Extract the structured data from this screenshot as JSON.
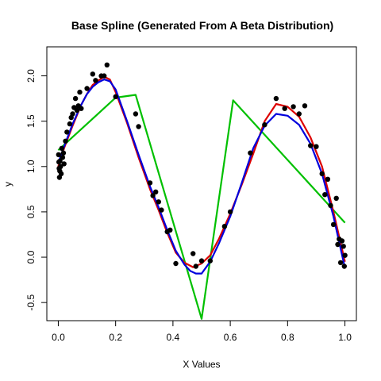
{
  "chart_data": {
    "type": "scatter",
    "title": "Base Spline (Generated From A Beta Distribution)",
    "xlabel": "X Values",
    "ylabel": "y",
    "xlim": [
      -0.04,
      1.04
    ],
    "ylim": [
      -0.7,
      2.32
    ],
    "x_ticks": [
      0.0,
      0.2,
      0.4,
      0.6,
      0.8,
      1.0
    ],
    "x_tick_labels": [
      "0.0",
      "0.2",
      "0.4",
      "0.6",
      "0.8",
      "1.0"
    ],
    "y_ticks": [
      -0.5,
      0.0,
      0.5,
      1.0,
      1.5,
      2.0
    ],
    "y_tick_labels": [
      "-0.5",
      "0.0",
      "0.5",
      "1.0",
      "1.5",
      "2.0"
    ],
    "grid": false,
    "points": {
      "color": "#000000",
      "x": [
        0.001,
        0.002,
        0.003,
        0.004,
        0.005,
        0.006,
        0.008,
        0.01,
        0.012,
        0.015,
        0.018,
        0.02,
        0.025,
        0.03,
        0.04,
        0.045,
        0.05,
        0.055,
        0.06,
        0.065,
        0.07,
        0.075,
        0.08,
        0.1,
        0.12,
        0.13,
        0.15,
        0.16,
        0.17,
        0.2,
        0.27,
        0.28,
        0.32,
        0.33,
        0.34,
        0.35,
        0.36,
        0.38,
        0.39,
        0.41,
        0.47,
        0.48,
        0.5,
        0.53,
        0.58,
        0.6,
        0.67,
        0.72,
        0.76,
        0.79,
        0.82,
        0.84,
        0.86,
        0.88,
        0.9,
        0.92,
        0.93,
        0.94,
        0.95,
        0.96,
        0.97,
        0.975,
        0.98,
        0.985,
        0.99,
        0.995,
        0.998,
        1.0
      ],
      "y": [
        1.13,
        1.05,
        0.98,
        0.88,
        0.95,
        1.06,
        1.0,
        0.92,
        1.2,
        1.1,
        1.15,
        1.03,
        1.28,
        1.38,
        1.47,
        1.54,
        1.58,
        1.65,
        1.75,
        1.62,
        1.67,
        1.82,
        1.64,
        1.86,
        2.02,
        1.95,
        2.0,
        2.0,
        2.12,
        1.77,
        1.58,
        1.44,
        0.82,
        0.68,
        0.72,
        0.61,
        0.52,
        0.28,
        0.3,
        -0.07,
        0.04,
        -0.1,
        -0.04,
        -0.04,
        0.34,
        0.5,
        1.15,
        1.46,
        1.75,
        1.64,
        1.66,
        1.58,
        1.67,
        1.23,
        1.22,
        0.92,
        0.69,
        0.86,
        0.57,
        0.36,
        0.65,
        0.14,
        0.2,
        -0.06,
        0.18,
        0.12,
        -0.1,
        0.02
      ]
    },
    "series": [
      {
        "color": "#00C000",
        "x": [
          0.0,
          0.2,
          0.27,
          0.5,
          0.61,
          1.0
        ],
        "y": [
          1.18,
          1.76,
          1.79,
          -0.68,
          1.73,
          0.38
        ]
      },
      {
        "color": "#DD0000",
        "x": [
          0.0,
          0.02,
          0.05,
          0.08,
          0.1,
          0.12,
          0.14,
          0.16,
          0.18,
          0.2,
          0.24,
          0.28,
          0.32,
          0.35,
          0.38,
          0.41,
          0.44,
          0.47,
          0.5,
          0.53,
          0.56,
          0.6,
          0.64,
          0.68,
          0.72,
          0.76,
          0.8,
          0.84,
          0.88,
          0.92,
          0.96,
          1.0
        ],
        "y": [
          1.0,
          1.2,
          1.45,
          1.68,
          1.8,
          1.9,
          1.95,
          1.99,
          1.96,
          1.82,
          1.48,
          1.1,
          0.75,
          0.52,
          0.27,
          0.05,
          -0.06,
          -0.11,
          -0.07,
          0.02,
          0.2,
          0.48,
          0.8,
          1.14,
          1.5,
          1.69,
          1.66,
          1.55,
          1.32,
          1.0,
          0.5,
          -0.05
        ]
      },
      {
        "color": "#0000DD",
        "x": [
          0.0,
          0.02,
          0.05,
          0.08,
          0.1,
          0.12,
          0.14,
          0.16,
          0.18,
          0.2,
          0.24,
          0.28,
          0.32,
          0.35,
          0.38,
          0.41,
          0.44,
          0.46,
          0.48,
          0.5,
          0.53,
          0.56,
          0.6,
          0.64,
          0.68,
          0.72,
          0.76,
          0.8,
          0.84,
          0.88,
          0.92,
          0.96,
          1.0
        ],
        "y": [
          1.04,
          1.22,
          1.47,
          1.68,
          1.8,
          1.88,
          1.93,
          1.96,
          1.94,
          1.85,
          1.5,
          1.13,
          0.78,
          0.55,
          0.3,
          0.07,
          -0.08,
          -0.15,
          -0.18,
          -0.18,
          -0.05,
          0.15,
          0.45,
          0.82,
          1.2,
          1.45,
          1.58,
          1.56,
          1.46,
          1.25,
          0.92,
          0.45,
          -0.12
        ]
      }
    ]
  }
}
